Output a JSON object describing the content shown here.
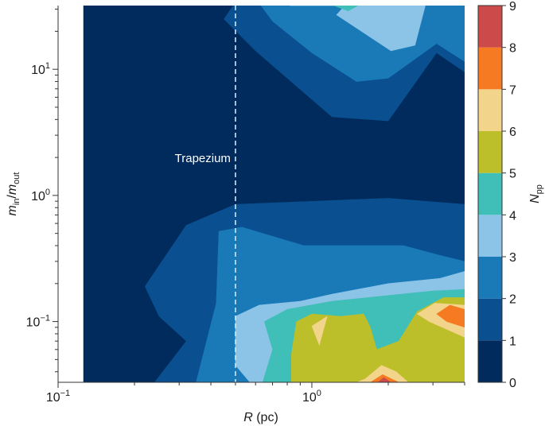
{
  "chart_data": {
    "type": "heatmap",
    "subtype": "filled-contour",
    "title": "",
    "xlabel": {
      "var": "R",
      "unit": " (pc)"
    },
    "ylabel": {
      "num": "m",
      "num_sub": "in",
      "den": "m",
      "den_sub": "out"
    },
    "xscale": "log",
    "yscale": "log",
    "xlim": [
      0.1,
      4.0
    ],
    "ylim": [
      0.033,
      32
    ],
    "data_x_range": [
      0.126,
      4.0
    ],
    "x_ticks": [
      {
        "value": 0.1,
        "base": "10",
        "exp": "−1"
      },
      {
        "value": 1.0,
        "base": "10",
        "exp": "0"
      }
    ],
    "y_ticks": [
      {
        "value": 0.1,
        "base": "10",
        "exp": "−1"
      },
      {
        "value": 1.0,
        "base": "10",
        "exp": "0"
      },
      {
        "value": 10.0,
        "base": "10",
        "exp": "1"
      }
    ],
    "colorbar": {
      "label": {
        "var": "N",
        "sub": "pp"
      },
      "levels": [
        0,
        1,
        2,
        3,
        4,
        5,
        6,
        7,
        8,
        9
      ],
      "colors": [
        "#002b5c",
        "#0a4f8f",
        "#1a7ab8",
        "#8cc4e8",
        "#3fbfb7",
        "#bdbf2a",
        "#f2d58a",
        "#f57a22",
        "#cc4a4a"
      ]
    },
    "annotation": {
      "text": "Trapezium",
      "x": 0.5,
      "line_style": "dashed"
    },
    "contour_fills": [
      {
        "level": 0,
        "points": [
          [
            0.126,
            0.033
          ],
          [
            4.0,
            0.033
          ],
          [
            4.0,
            32
          ],
          [
            0.126,
            32
          ]
        ]
      },
      {
        "level": 1,
        "points": [
          [
            0.49,
            32
          ],
          [
            4.0,
            32
          ],
          [
            4.0,
            9.5
          ],
          [
            3.1,
            13.5
          ],
          [
            2.0,
            3.9
          ],
          [
            1.2,
            4.2
          ],
          [
            0.6,
            14
          ],
          [
            0.45,
            25
          ]
        ]
      },
      {
        "level": 1,
        "points": [
          [
            0.126,
            0.033
          ],
          [
            0.24,
            0.033
          ],
          [
            0.32,
            0.07
          ],
          [
            0.25,
            0.11
          ],
          [
            0.22,
            0.19
          ],
          [
            0.32,
            0.58
          ],
          [
            0.5,
            0.85
          ],
          [
            2.0,
            0.95
          ],
          [
            4.0,
            0.85
          ],
          [
            4.0,
            0.033
          ]
        ]
      },
      {
        "level": 2,
        "points": [
          [
            0.63,
            32
          ],
          [
            4.0,
            32
          ],
          [
            4.0,
            11.5
          ],
          [
            3.1,
            16
          ],
          [
            2.0,
            8.5
          ],
          [
            1.5,
            8.0
          ],
          [
            1.0,
            13.5
          ],
          [
            0.7,
            24
          ]
        ]
      },
      {
        "level": 2,
        "points": [
          [
            0.24,
            0.033
          ],
          [
            0.35,
            0.033
          ],
          [
            0.42,
            0.14
          ],
          [
            0.43,
            0.52
          ],
          [
            0.53,
            0.56
          ],
          [
            0.93,
            0.4
          ],
          [
            2.3,
            0.4
          ],
          [
            3.1,
            0.34
          ],
          [
            4.0,
            0.3
          ],
          [
            4.0,
            0.033
          ]
        ]
      },
      {
        "level": 3,
        "points": [
          [
            0.82,
            32
          ],
          [
            1.35,
            32
          ],
          [
            1.25,
            27
          ],
          [
            2.05,
            14
          ],
          [
            2.55,
            15.5
          ],
          [
            2.8,
            32
          ]
        ]
      },
      {
        "level": 3,
        "points": [
          [
            0.5,
            0.045
          ],
          [
            0.57,
            0.033
          ],
          [
            4.0,
            0.033
          ],
          [
            4.0,
            0.25
          ],
          [
            3.2,
            0.22
          ],
          [
            2.0,
            0.2
          ],
          [
            1.2,
            0.165
          ],
          [
            0.9,
            0.145
          ],
          [
            0.62,
            0.135
          ],
          [
            0.5,
            0.11
          ]
        ]
      },
      {
        "level": 4,
        "points": [
          [
            1.22,
            32
          ],
          [
            1.52,
            32
          ],
          [
            1.39,
            29
          ]
        ]
      },
      {
        "level": 4,
        "points": [
          [
            0.64,
            0.033
          ],
          [
            4.0,
            0.033
          ],
          [
            4.0,
            0.18
          ],
          [
            3.0,
            0.175
          ],
          [
            1.2,
            0.145
          ],
          [
            0.8,
            0.125
          ],
          [
            0.65,
            0.1
          ],
          [
            0.7,
            0.06
          ]
        ]
      },
      {
        "level": 5,
        "points": [
          [
            0.83,
            0.033
          ],
          [
            4.0,
            0.033
          ],
          [
            4.0,
            0.155
          ],
          [
            3.3,
            0.155
          ],
          [
            2.6,
            0.12
          ],
          [
            2.2,
            0.07
          ],
          [
            1.8,
            0.06
          ],
          [
            1.7,
            0.09
          ],
          [
            1.6,
            0.115
          ],
          [
            1.3,
            0.11
          ],
          [
            1.0,
            0.115
          ],
          [
            0.87,
            0.1
          ],
          [
            0.83,
            0.055
          ]
        ]
      },
      {
        "level": 6,
        "points": [
          [
            1.0,
            0.092
          ],
          [
            1.15,
            0.11
          ],
          [
            1.07,
            0.065
          ]
        ]
      },
      {
        "level": 6,
        "points": [
          [
            1.5,
            0.033
          ],
          [
            2.4,
            0.033
          ],
          [
            2.15,
            0.04
          ],
          [
            1.88,
            0.045
          ],
          [
            1.62,
            0.035
          ]
        ]
      },
      {
        "level": 6,
        "points": [
          [
            4.0,
            0.075
          ],
          [
            2.9,
            0.1
          ],
          [
            2.6,
            0.115
          ],
          [
            3.05,
            0.14
          ],
          [
            4.0,
            0.135
          ]
        ]
      },
      {
        "level": 7,
        "points": [
          [
            4.0,
            0.09
          ],
          [
            3.4,
            0.1
          ],
          [
            3.1,
            0.115
          ],
          [
            3.5,
            0.135
          ],
          [
            4.0,
            0.125
          ]
        ]
      },
      {
        "level": 7,
        "points": [
          [
            1.7,
            0.033
          ],
          [
            2.2,
            0.033
          ],
          [
            1.9,
            0.038
          ]
        ]
      },
      {
        "level": 8,
        "points": [
          [
            1.82,
            0.033
          ],
          [
            2.05,
            0.033
          ],
          [
            1.92,
            0.036
          ]
        ]
      }
    ]
  }
}
